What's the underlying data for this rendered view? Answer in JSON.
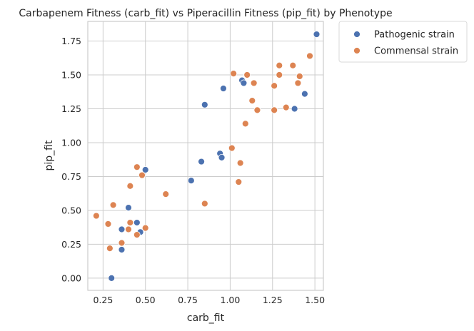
{
  "chart_data": {
    "type": "scatter",
    "title": "Carbapenem Fitness (carb_fit) vs Piperacillin Fitness (pip_fit) by Phenotype",
    "xlabel": "carb_fit",
    "ylabel": "pip_fit",
    "xlim": [
      0.16,
      1.55
    ],
    "ylim": [
      -0.09,
      1.895
    ],
    "xticks": [
      0.25,
      0.5,
      0.75,
      1.0,
      1.25,
      1.5
    ],
    "xtick_labels": [
      "0.25",
      "0.50",
      "0.75",
      "1.00",
      "1.25",
      "1.50"
    ],
    "yticks": [
      0.0,
      0.25,
      0.5,
      0.75,
      1.0,
      1.25,
      1.5,
      1.75
    ],
    "ytick_labels": [
      "0.00",
      "0.25",
      "0.50",
      "0.75",
      "1.00",
      "1.25",
      "1.50",
      "1.75"
    ],
    "grid": true,
    "legend_position": "outside-top-right",
    "series": [
      {
        "name": "Pathogenic strain",
        "color": "#4c72b0",
        "points": [
          {
            "x": 1.51,
            "y": 1.8
          },
          {
            "x": 1.44,
            "y": 1.36
          },
          {
            "x": 1.38,
            "y": 1.25
          },
          {
            "x": 1.07,
            "y": 1.46
          },
          {
            "x": 1.08,
            "y": 1.44
          },
          {
            "x": 0.96,
            "y": 1.4
          },
          {
            "x": 0.85,
            "y": 1.28
          },
          {
            "x": 0.94,
            "y": 0.92
          },
          {
            "x": 0.95,
            "y": 0.89
          },
          {
            "x": 0.83,
            "y": 0.86
          },
          {
            "x": 0.77,
            "y": 0.72
          },
          {
            "x": 0.5,
            "y": 0.8
          },
          {
            "x": 0.4,
            "y": 0.52
          },
          {
            "x": 0.45,
            "y": 0.41
          },
          {
            "x": 0.36,
            "y": 0.36
          },
          {
            "x": 0.47,
            "y": 0.34
          },
          {
            "x": 0.36,
            "y": 0.21
          },
          {
            "x": 0.3,
            "y": 0.0
          }
        ]
      },
      {
        "name": "Commensal strain",
        "color": "#dd8452",
        "points": [
          {
            "x": 1.47,
            "y": 1.64
          },
          {
            "x": 1.29,
            "y": 1.57
          },
          {
            "x": 1.37,
            "y": 1.57
          },
          {
            "x": 1.02,
            "y": 1.51
          },
          {
            "x": 1.1,
            "y": 1.5
          },
          {
            "x": 1.29,
            "y": 1.5
          },
          {
            "x": 1.41,
            "y": 1.49
          },
          {
            "x": 1.14,
            "y": 1.44
          },
          {
            "x": 1.26,
            "y": 1.42
          },
          {
            "x": 1.4,
            "y": 1.44
          },
          {
            "x": 1.13,
            "y": 1.31
          },
          {
            "x": 1.16,
            "y": 1.24
          },
          {
            "x": 1.26,
            "y": 1.24
          },
          {
            "x": 1.33,
            "y": 1.26
          },
          {
            "x": 1.09,
            "y": 1.14
          },
          {
            "x": 1.01,
            "y": 0.96
          },
          {
            "x": 1.06,
            "y": 0.85
          },
          {
            "x": 1.05,
            "y": 0.71
          },
          {
            "x": 0.85,
            "y": 0.55
          },
          {
            "x": 0.62,
            "y": 0.62
          },
          {
            "x": 0.45,
            "y": 0.82
          },
          {
            "x": 0.48,
            "y": 0.76
          },
          {
            "x": 0.41,
            "y": 0.68
          },
          {
            "x": 0.31,
            "y": 0.54
          },
          {
            "x": 0.21,
            "y": 0.46
          },
          {
            "x": 0.28,
            "y": 0.4
          },
          {
            "x": 0.41,
            "y": 0.41
          },
          {
            "x": 0.4,
            "y": 0.36
          },
          {
            "x": 0.5,
            "y": 0.37
          },
          {
            "x": 0.45,
            "y": 0.32
          },
          {
            "x": 0.36,
            "y": 0.26
          },
          {
            "x": 0.29,
            "y": 0.22
          }
        ]
      }
    ]
  }
}
